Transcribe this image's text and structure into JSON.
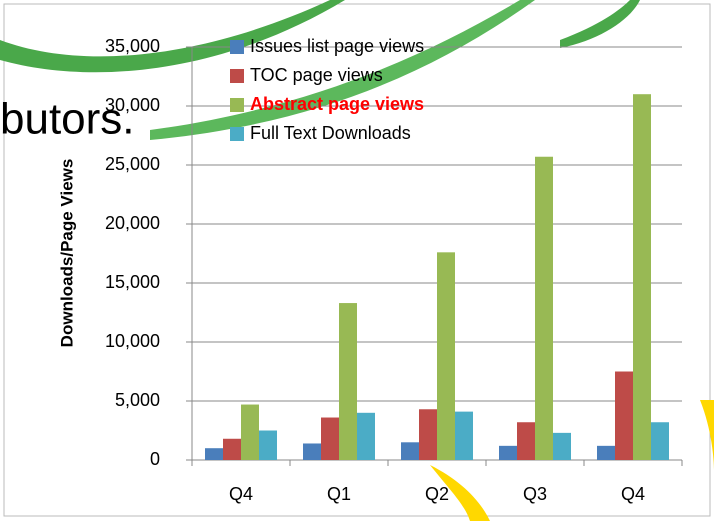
{
  "slide_text": "butors.",
  "chart_data": {
    "type": "bar",
    "y_label": "Downloads/Page Views",
    "categories": [
      "Q4",
      "Q1",
      "Q2",
      "Q3",
      "Q4"
    ],
    "series": [
      {
        "name": "Issues list page views",
        "color": "#4a7ebb",
        "values": [
          1000,
          1400,
          1500,
          1200,
          1200
        ]
      },
      {
        "name": "TOC page views",
        "color": "#be4b48",
        "values": [
          1800,
          3600,
          4300,
          3200,
          7500
        ]
      },
      {
        "name": "Abstract page views",
        "color": "#98b954",
        "values": [
          4700,
          13300,
          17600,
          25700,
          31000
        ]
      },
      {
        "name": "Full Text Downloads",
        "color": "#4bacc6",
        "values": [
          2500,
          4000,
          4100,
          2300,
          3200
        ]
      }
    ],
    "ylim": [
      0,
      35000
    ],
    "yticks": [
      0,
      {
        "value": 5000,
        "label": "5,000"
      },
      {
        "value": 10000,
        "label": "10,000"
      },
      {
        "value": 15000,
        "label": "15,000"
      },
      {
        "value": 20000,
        "label": "20,000"
      },
      {
        "value": 25000,
        "label": "25,000"
      },
      {
        "value": 30000,
        "label": "30,000"
      },
      {
        "value": 35000,
        "label": "35,000"
      }
    ],
    "grid": true,
    "legend": "top-left"
  }
}
